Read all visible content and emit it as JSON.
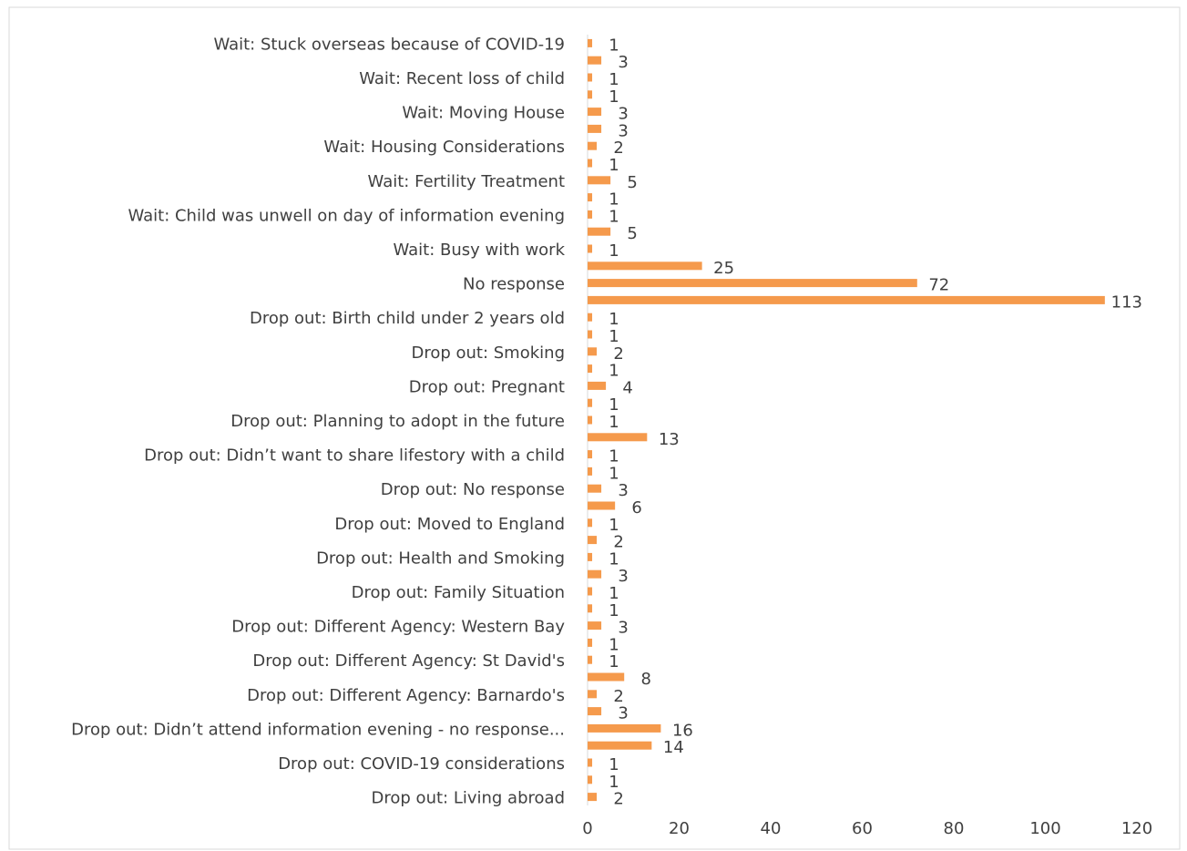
{
  "chart_data": {
    "type": "bar",
    "orientation": "horizontal",
    "categories": [
      "Wait: Stuck overseas because of COVID-19",
      null,
      "Wait: Recent loss of child",
      null,
      "Wait: Moving House",
      null,
      "Wait: Housing Considerations",
      null,
      "Wait: Fertility Treatment",
      null,
      "Wait: Child was unwell on day of information evening",
      null,
      "Wait: Busy with work",
      null,
      "No response",
      null,
      "Drop out: Birth child under 2 years old",
      null,
      "Drop out: Smoking",
      null,
      "Drop out: Pregnant",
      null,
      "Drop out: Planning to adopt in the future",
      null,
      "Drop out: Didn’t want to share lifestory with a child",
      null,
      "Drop out: No response",
      null,
      "Drop out: Moved to England",
      null,
      "Drop out: Health and Smoking",
      null,
      "Drop out: Family Situation",
      null,
      "Drop out: Different Agency: Western Bay",
      null,
      "Drop out: Different Agency: St David's",
      null,
      "Drop out: Different Agency: Barnardo's",
      null,
      "Drop out: Didn’t attend information evening - no response...",
      null,
      "Drop out: COVID-19 considerations",
      null,
      "Drop out: Living abroad"
    ],
    "values": [
      1,
      3,
      1,
      1,
      3,
      3,
      2,
      1,
      5,
      1,
      1,
      5,
      1,
      25,
      72,
      113,
      1,
      1,
      2,
      1,
      4,
      1,
      1,
      13,
      1,
      1,
      3,
      6,
      1,
      2,
      1,
      3,
      1,
      1,
      3,
      1,
      1,
      8,
      2,
      3,
      16,
      14,
      1,
      1,
      2
    ],
    "color": "#f59a4c",
    "xlim": [
      0,
      120
    ],
    "xticks": [
      0,
      20,
      40,
      60,
      80,
      100,
      120
    ],
    "grid": false
  }
}
